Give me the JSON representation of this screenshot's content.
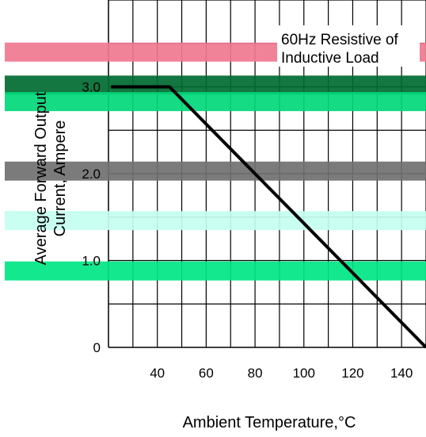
{
  "chart_data": {
    "type": "line",
    "title": "",
    "annotation_line1": "60Hz Resistive of",
    "annotation_line2": "Inductive Load",
    "xlabel": "Ambient Temperature,°C",
    "ylabel_line1": "Average Forward Output",
    "ylabel_line2": "Current, Ampere",
    "xlim": [
      20,
      150
    ],
    "ylim": [
      0,
      4.0
    ],
    "x_ticks": [
      40,
      60,
      80,
      100,
      120,
      140
    ],
    "y_ticks": [
      {
        "value": 0,
        "label": "0"
      },
      {
        "value": 1.0,
        "label": "1.0"
      },
      {
        "value": 2.0,
        "label": "2.0"
      },
      {
        "value": 3.0,
        "label": "3.0"
      }
    ],
    "grid": true,
    "series": [
      {
        "x": [
          21,
          45,
          150
        ],
        "y": [
          3.0,
          3.0,
          0.0
        ],
        "color": "#000000"
      }
    ],
    "bands": [
      {
        "y": 3.4,
        "color": "#f07890"
      },
      {
        "y": 3.02,
        "color": "#006a30"
      },
      {
        "y": 2.83,
        "color": "#00d87a"
      },
      {
        "y": 2.03,
        "color": "#707070"
      },
      {
        "y": 1.46,
        "color": "#c4fff0"
      },
      {
        "y": 0.88,
        "color": "#00e686"
      }
    ]
  }
}
